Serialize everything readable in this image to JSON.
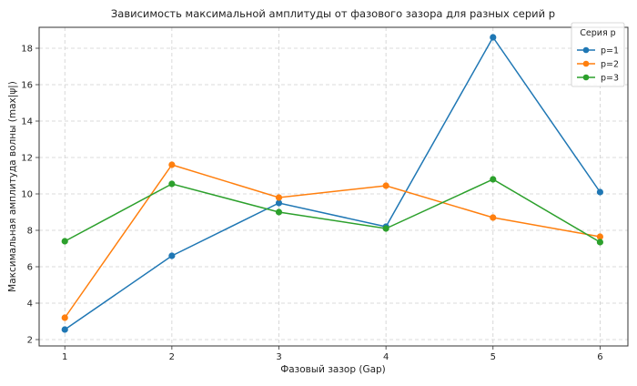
{
  "chart_data": {
    "type": "line",
    "title": "Зависимость максимальной амплитуды от фазового зазора для разных серий p",
    "xlabel": "Фазовый зазор (Gap)",
    "ylabel": "Максимальная амплитуда волны (max|ψ|)",
    "x": [
      1,
      2,
      3,
      4,
      5,
      6
    ],
    "xticks": [
      1,
      2,
      3,
      4,
      5,
      6
    ],
    "yticks": [
      2,
      4,
      6,
      8,
      10,
      12,
      14,
      16,
      18
    ],
    "xlim": [
      0.76,
      6.26
    ],
    "ylim": [
      1.65,
      19.15
    ],
    "grid": true,
    "legend_title": "Серия p",
    "legend_position": "upper right",
    "series": [
      {
        "name": "p=1",
        "color": "#1f77b4",
        "values": [
          2.55,
          6.6,
          9.5,
          8.2,
          18.6,
          10.1
        ]
      },
      {
        "name": "p=2",
        "color": "#ff7f0e",
        "values": [
          3.2,
          11.6,
          9.8,
          10.45,
          8.7,
          7.65
        ]
      },
      {
        "name": "p=3",
        "color": "#2ca02c",
        "values": [
          7.4,
          10.55,
          9.0,
          8.1,
          10.8,
          7.35
        ]
      }
    ]
  }
}
